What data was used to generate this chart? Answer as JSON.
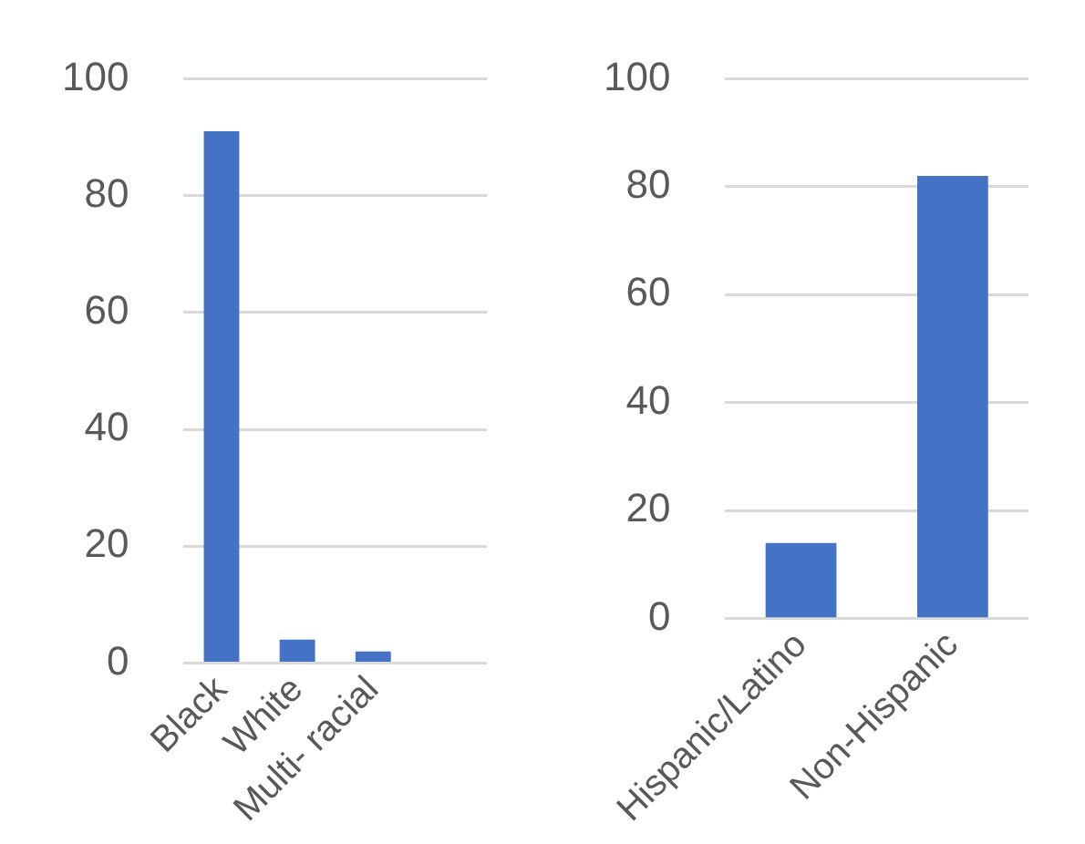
{
  "chart_data": [
    {
      "type": "bar",
      "categories": [
        "Black",
        "White",
        "Multi- racial",
        null
      ],
      "values": [
        91,
        4,
        2,
        null
      ],
      "color": "#4472c4",
      "ylim": [
        0,
        100
      ],
      "yticks": [
        0,
        20,
        40,
        60,
        80,
        100
      ],
      "grid": "y",
      "legend": false
    },
    {
      "type": "bar",
      "categories": [
        "Hispanic/Latino",
        "Non-Hispanic"
      ],
      "values": [
        14,
        82
      ],
      "color": "#4472c4",
      "ylim": [
        0,
        100
      ],
      "yticks": [
        0,
        20,
        40,
        60,
        80,
        100
      ],
      "grid": "y",
      "legend": false
    }
  ]
}
